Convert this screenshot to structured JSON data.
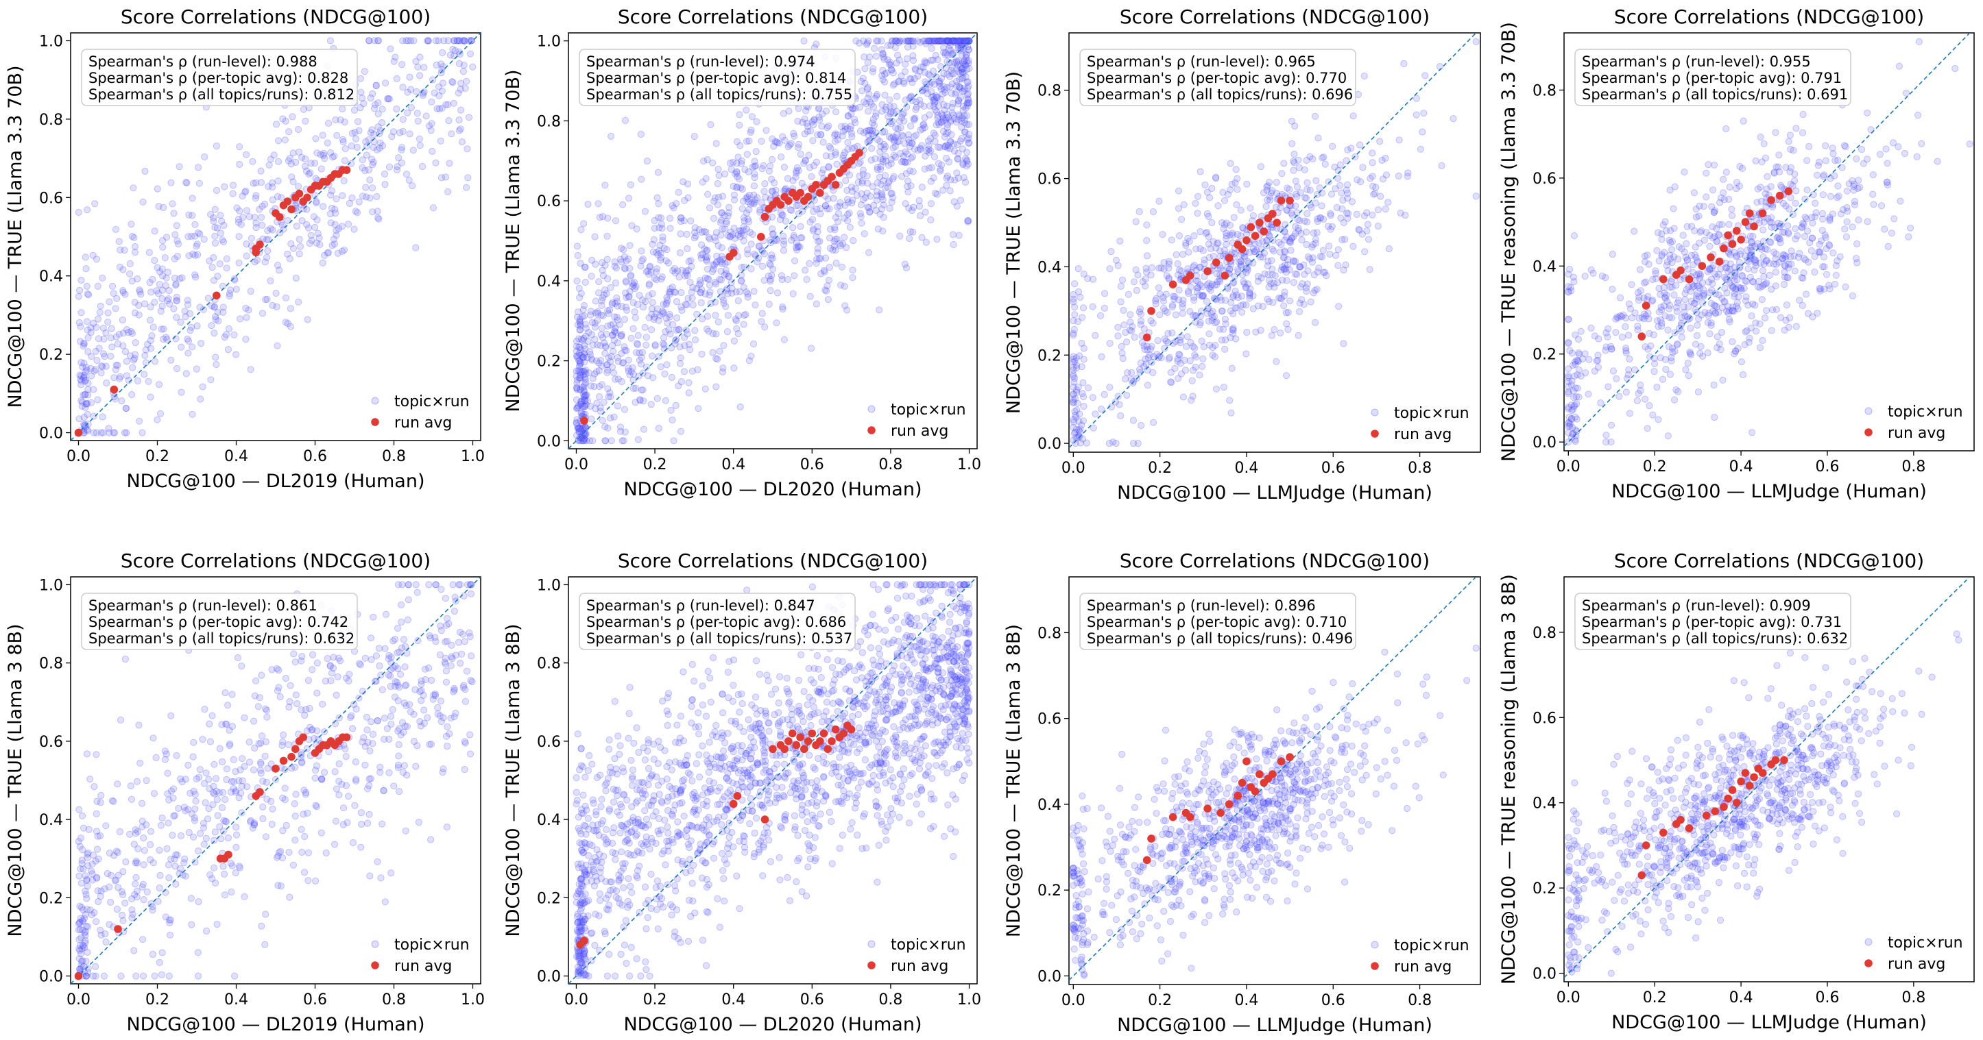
{
  "chart_data": [
    {
      "type": "scatter",
      "title": "Score Correlations (NDCG@100)",
      "xlabel": "NDCG@100 — DL2019 (Human)",
      "ylabel": "NDCG@100 — TRUE (Llama 3.3 70B)",
      "xlim": [
        -0.02,
        1.02
      ],
      "ylim": [
        -0.02,
        1.02
      ],
      "xticks": [
        "0.0",
        "0.2",
        "0.4",
        "0.6",
        "0.8",
        "1.0"
      ],
      "yticks": [
        "0.0",
        "0.2",
        "0.4",
        "0.6",
        "0.8",
        "1.0"
      ],
      "stats": [
        "Spearman's ρ (run-level): 0.988",
        "Spearman's ρ (per-topic avg): 0.828",
        "Spearman's ρ (all topics/runs): 0.812"
      ],
      "legend": {
        "position": "lower right",
        "entries": [
          "topic×run",
          "run avg"
        ]
      },
      "identity_line": true,
      "topic_run": {
        "count": 800,
        "trend": {
          "a": 0.16,
          "b": 0.78
        },
        "spread": 0.14,
        "x_dist": "uniform",
        "seed": 11
      },
      "run_avg": {
        "x": [
          0.0,
          0.09,
          0.35,
          0.45,
          0.45,
          0.46,
          0.5,
          0.51,
          0.52,
          0.53,
          0.54,
          0.55,
          0.56,
          0.57,
          0.58,
          0.59,
          0.6,
          0.61,
          0.62,
          0.63,
          0.64,
          0.65,
          0.66,
          0.67,
          0.68
        ],
        "y": [
          0.0,
          0.11,
          0.35,
          0.46,
          0.47,
          0.48,
          0.56,
          0.55,
          0.58,
          0.59,
          0.57,
          0.6,
          0.61,
          0.59,
          0.6,
          0.62,
          0.63,
          0.63,
          0.64,
          0.64,
          0.65,
          0.66,
          0.66,
          0.67,
          0.67
        ]
      }
    },
    {
      "type": "scatter",
      "title": "Score Correlations (NDCG@100)",
      "xlabel": "NDCG@100 — DL2020 (Human)",
      "ylabel": "NDCG@100 — TRUE (Llama 3.3 70B)",
      "xlim": [
        -0.02,
        1.02
      ],
      "ylim": [
        -0.02,
        1.02
      ],
      "xticks": [
        "0.0",
        "0.2",
        "0.4",
        "0.6",
        "0.8",
        "1.0"
      ],
      "yticks": [
        "0.0",
        "0.2",
        "0.4",
        "0.6",
        "0.8",
        "1.0"
      ],
      "stats": [
        "Spearman's ρ (run-level): 0.974",
        "Spearman's ρ (per-topic avg): 0.814",
        "Spearman's ρ (all topics/runs): 0.755"
      ],
      "legend": {
        "position": "lower right",
        "entries": [
          "topic×run",
          "run avg"
        ]
      },
      "identity_line": true,
      "topic_run": {
        "count": 1900,
        "trend": {
          "a": 0.2,
          "b": 0.72
        },
        "spread": 0.15,
        "x_dist": "right",
        "seed": 23
      },
      "run_avg": {
        "x": [
          0.02,
          0.39,
          0.4,
          0.47,
          0.48,
          0.49,
          0.5,
          0.51,
          0.52,
          0.53,
          0.54,
          0.55,
          0.56,
          0.57,
          0.58,
          0.59,
          0.6,
          0.61,
          0.62,
          0.63,
          0.64,
          0.65,
          0.66,
          0.67,
          0.68,
          0.69,
          0.7,
          0.71,
          0.72
        ],
        "y": [
          0.05,
          0.46,
          0.47,
          0.51,
          0.56,
          0.58,
          0.59,
          0.6,
          0.59,
          0.61,
          0.6,
          0.62,
          0.61,
          0.62,
          0.6,
          0.61,
          0.63,
          0.64,
          0.62,
          0.64,
          0.65,
          0.66,
          0.64,
          0.67,
          0.68,
          0.69,
          0.7,
          0.71,
          0.72
        ]
      }
    },
    {
      "type": "scatter",
      "title": "Score Correlations (NDCG@100)",
      "xlabel": "NDCG@100 — LLMJudge (Human)",
      "ylabel": "NDCG@100 — TRUE (Llama 3.3 70B)",
      "xlim": [
        -0.01,
        0.94
      ],
      "ylim": [
        -0.02,
        0.93
      ],
      "xticks": [
        "0.0",
        "0.2",
        "0.4",
        "0.6",
        "0.8"
      ],
      "yticks": [
        "0.0",
        "0.2",
        "0.4",
        "0.6",
        "0.8"
      ],
      "stats": [
        "Spearman's ρ (run-level): 0.965",
        "Spearman's ρ (per-topic avg): 0.770",
        "Spearman's ρ (all topics/runs): 0.696"
      ],
      "legend": {
        "position": "lower right",
        "entries": [
          "topic×run",
          "run avg"
        ]
      },
      "identity_line": true,
      "topic_run": {
        "count": 900,
        "trend": {
          "a": 0.16,
          "b": 0.62
        },
        "spread": 0.11,
        "x_dist": "mid",
        "seed": 37
      },
      "run_avg": {
        "x": [
          0.17,
          0.18,
          0.23,
          0.26,
          0.27,
          0.31,
          0.33,
          0.35,
          0.36,
          0.38,
          0.39,
          0.4,
          0.41,
          0.42,
          0.43,
          0.44,
          0.45,
          0.46,
          0.47,
          0.48,
          0.5
        ],
        "y": [
          0.24,
          0.3,
          0.36,
          0.37,
          0.38,
          0.39,
          0.41,
          0.38,
          0.42,
          0.45,
          0.44,
          0.46,
          0.49,
          0.47,
          0.5,
          0.48,
          0.51,
          0.52,
          0.5,
          0.55,
          0.55
        ]
      }
    },
    {
      "type": "scatter",
      "title": "Score Correlations (NDCG@100)",
      "xlabel": "NDCG@100 — LLMJudge (Human)",
      "ylabel": "NDCG@100 — TRUE reasoning (Llama 3.3 70B)",
      "xlim": [
        -0.01,
        0.94
      ],
      "ylim": [
        -0.02,
        0.93
      ],
      "xticks": [
        "0.0",
        "0.2",
        "0.4",
        "0.6",
        "0.8"
      ],
      "yticks": [
        "0.0",
        "0.2",
        "0.4",
        "0.6",
        "0.8"
      ],
      "stats": [
        "Spearman's ρ (run-level): 0.955",
        "Spearman's ρ (per-topic avg): 0.791",
        "Spearman's ρ (all topics/runs): 0.691"
      ],
      "legend": {
        "position": "lower right",
        "entries": [
          "topic×run",
          "run avg"
        ]
      },
      "identity_line": true,
      "topic_run": {
        "count": 900,
        "trend": {
          "a": 0.17,
          "b": 0.6
        },
        "spread": 0.11,
        "x_dist": "mid",
        "seed": 41
      },
      "run_avg": {
        "x": [
          0.17,
          0.18,
          0.22,
          0.25,
          0.26,
          0.28,
          0.31,
          0.33,
          0.35,
          0.36,
          0.37,
          0.38,
          0.39,
          0.4,
          0.41,
          0.42,
          0.43,
          0.45,
          0.47,
          0.49,
          0.51
        ],
        "y": [
          0.24,
          0.31,
          0.37,
          0.38,
          0.39,
          0.37,
          0.4,
          0.42,
          0.41,
          0.44,
          0.47,
          0.45,
          0.48,
          0.46,
          0.5,
          0.52,
          0.49,
          0.52,
          0.55,
          0.56,
          0.57
        ]
      }
    },
    {
      "type": "scatter",
      "title": "Score Correlations (NDCG@100)",
      "xlabel": "NDCG@100 — DL2019 (Human)",
      "ylabel": "NDCG@100 — TRUE (Llama 3 8B)",
      "xlim": [
        -0.02,
        1.02
      ],
      "ylim": [
        -0.02,
        1.02
      ],
      "xticks": [
        "0.0",
        "0.2",
        "0.4",
        "0.6",
        "0.8",
        "1.0"
      ],
      "yticks": [
        "0.0",
        "0.2",
        "0.4",
        "0.6",
        "0.8",
        "1.0"
      ],
      "stats": [
        "Spearman's ρ (run-level): 0.861",
        "Spearman's ρ (per-topic avg): 0.742",
        "Spearman's ρ (all topics/runs): 0.632"
      ],
      "legend": {
        "position": "lower right",
        "entries": [
          "topic×run",
          "run avg"
        ]
      },
      "identity_line": true,
      "topic_run": {
        "count": 800,
        "trend": {
          "a": 0.22,
          "b": 0.6
        },
        "spread": 0.16,
        "x_dist": "uniform",
        "seed": 53
      },
      "run_avg": {
        "x": [
          0.0,
          0.1,
          0.36,
          0.37,
          0.38,
          0.45,
          0.46,
          0.5,
          0.52,
          0.54,
          0.55,
          0.56,
          0.57,
          0.6,
          0.61,
          0.62,
          0.63,
          0.64,
          0.65,
          0.66,
          0.67,
          0.68
        ],
        "y": [
          0.0,
          0.12,
          0.3,
          0.3,
          0.31,
          0.46,
          0.47,
          0.53,
          0.55,
          0.56,
          0.58,
          0.6,
          0.61,
          0.57,
          0.58,
          0.59,
          0.59,
          0.6,
          0.59,
          0.6,
          0.61,
          0.61
        ]
      }
    },
    {
      "type": "scatter",
      "title": "Score Correlations (NDCG@100)",
      "xlabel": "NDCG@100 — DL2020 (Human)",
      "ylabel": "NDCG@100 — TRUE (Llama 3 8B)",
      "xlim": [
        -0.02,
        1.02
      ],
      "ylim": [
        -0.02,
        1.02
      ],
      "xticks": [
        "0.0",
        "0.2",
        "0.4",
        "0.6",
        "0.8",
        "1.0"
      ],
      "yticks": [
        "0.0",
        "0.2",
        "0.4",
        "0.6",
        "0.8",
        "1.0"
      ],
      "stats": [
        "Spearman's ρ (run-level): 0.847",
        "Spearman's ρ (per-topic avg): 0.686",
        "Spearman's ρ (all topics/runs): 0.537"
      ],
      "legend": {
        "position": "lower right",
        "entries": [
          "topic×run",
          "run avg"
        ]
      },
      "identity_line": true,
      "topic_run": {
        "count": 1900,
        "trend": {
          "a": 0.3,
          "b": 0.48
        },
        "spread": 0.15,
        "x_dist": "right",
        "seed": 67
      },
      "run_avg": {
        "x": [
          0.01,
          0.02,
          0.4,
          0.41,
          0.48,
          0.5,
          0.52,
          0.53,
          0.54,
          0.55,
          0.56,
          0.57,
          0.58,
          0.59,
          0.6,
          0.61,
          0.62,
          0.63,
          0.64,
          0.65,
          0.66,
          0.67,
          0.68,
          0.69,
          0.7
        ],
        "y": [
          0.08,
          0.09,
          0.44,
          0.46,
          0.4,
          0.58,
          0.59,
          0.58,
          0.6,
          0.62,
          0.59,
          0.61,
          0.58,
          0.6,
          0.62,
          0.59,
          0.6,
          0.62,
          0.58,
          0.6,
          0.63,
          0.61,
          0.62,
          0.64,
          0.63
        ]
      }
    },
    {
      "type": "scatter",
      "title": "Score Correlations (NDCG@100)",
      "xlabel": "NDCG@100 — LLMJudge (Human)",
      "ylabel": "NDCG@100 — TRUE (Llama 3 8B)",
      "xlim": [
        -0.01,
        0.94
      ],
      "ylim": [
        -0.02,
        0.93
      ],
      "xticks": [
        "0.0",
        "0.2",
        "0.4",
        "0.6",
        "0.8"
      ],
      "yticks": [
        "0.0",
        "0.2",
        "0.4",
        "0.6",
        "0.8"
      ],
      "stats": [
        "Spearman's ρ (run-level): 0.896",
        "Spearman's ρ (per-topic avg): 0.710",
        "Spearman's ρ (all topics/runs): 0.496"
      ],
      "legend": {
        "position": "lower right",
        "entries": [
          "topic×run",
          "run avg"
        ]
      },
      "identity_line": true,
      "topic_run": {
        "count": 900,
        "trend": {
          "a": 0.2,
          "b": 0.45
        },
        "spread": 0.1,
        "x_dist": "mid",
        "seed": 79
      },
      "run_avg": {
        "x": [
          0.17,
          0.18,
          0.23,
          0.26,
          0.27,
          0.31,
          0.34,
          0.36,
          0.38,
          0.39,
          0.4,
          0.41,
          0.42,
          0.43,
          0.44,
          0.45,
          0.46,
          0.48,
          0.5
        ],
        "y": [
          0.27,
          0.32,
          0.37,
          0.38,
          0.37,
          0.39,
          0.38,
          0.4,
          0.42,
          0.45,
          0.5,
          0.44,
          0.43,
          0.47,
          0.45,
          0.46,
          0.47,
          0.5,
          0.51
        ]
      }
    },
    {
      "type": "scatter",
      "title": "Score Correlations (NDCG@100)",
      "xlabel": "NDCG@100 — LLMJudge (Human)",
      "ylabel": "NDCG@100 — TRUE reasoning (Llama 3 8B)",
      "xlim": [
        -0.01,
        0.94
      ],
      "ylim": [
        -0.02,
        0.93
      ],
      "xticks": [
        "0.0",
        "0.2",
        "0.4",
        "0.6",
        "0.8"
      ],
      "yticks": [
        "0.0",
        "0.2",
        "0.4",
        "0.6",
        "0.8"
      ],
      "stats": [
        "Spearman's ρ (run-level): 0.909",
        "Spearman's ρ (per-topic avg): 0.731",
        "Spearman's ρ (all topics/runs): 0.632"
      ],
      "legend": {
        "position": "lower right",
        "entries": [
          "topic×run",
          "run avg"
        ]
      },
      "identity_line": true,
      "topic_run": {
        "count": 900,
        "trend": {
          "a": 0.2,
          "b": 0.5
        },
        "spread": 0.1,
        "x_dist": "mid",
        "seed": 97
      },
      "run_avg": {
        "x": [
          0.17,
          0.18,
          0.22,
          0.25,
          0.26,
          0.28,
          0.32,
          0.34,
          0.36,
          0.37,
          0.38,
          0.39,
          0.4,
          0.41,
          0.42,
          0.43,
          0.44,
          0.45,
          0.47,
          0.48,
          0.5
        ],
        "y": [
          0.23,
          0.3,
          0.33,
          0.35,
          0.36,
          0.34,
          0.37,
          0.38,
          0.39,
          0.41,
          0.43,
          0.4,
          0.45,
          0.47,
          0.44,
          0.46,
          0.48,
          0.47,
          0.49,
          0.5,
          0.5
        ]
      }
    }
  ],
  "colors": {
    "topic_run": "#6b6bff",
    "topic_run_edge": "#2a2aff",
    "run_avg": "#e03a35",
    "diagonal": "#1f77b4",
    "legend_box": "#cccccc"
  }
}
